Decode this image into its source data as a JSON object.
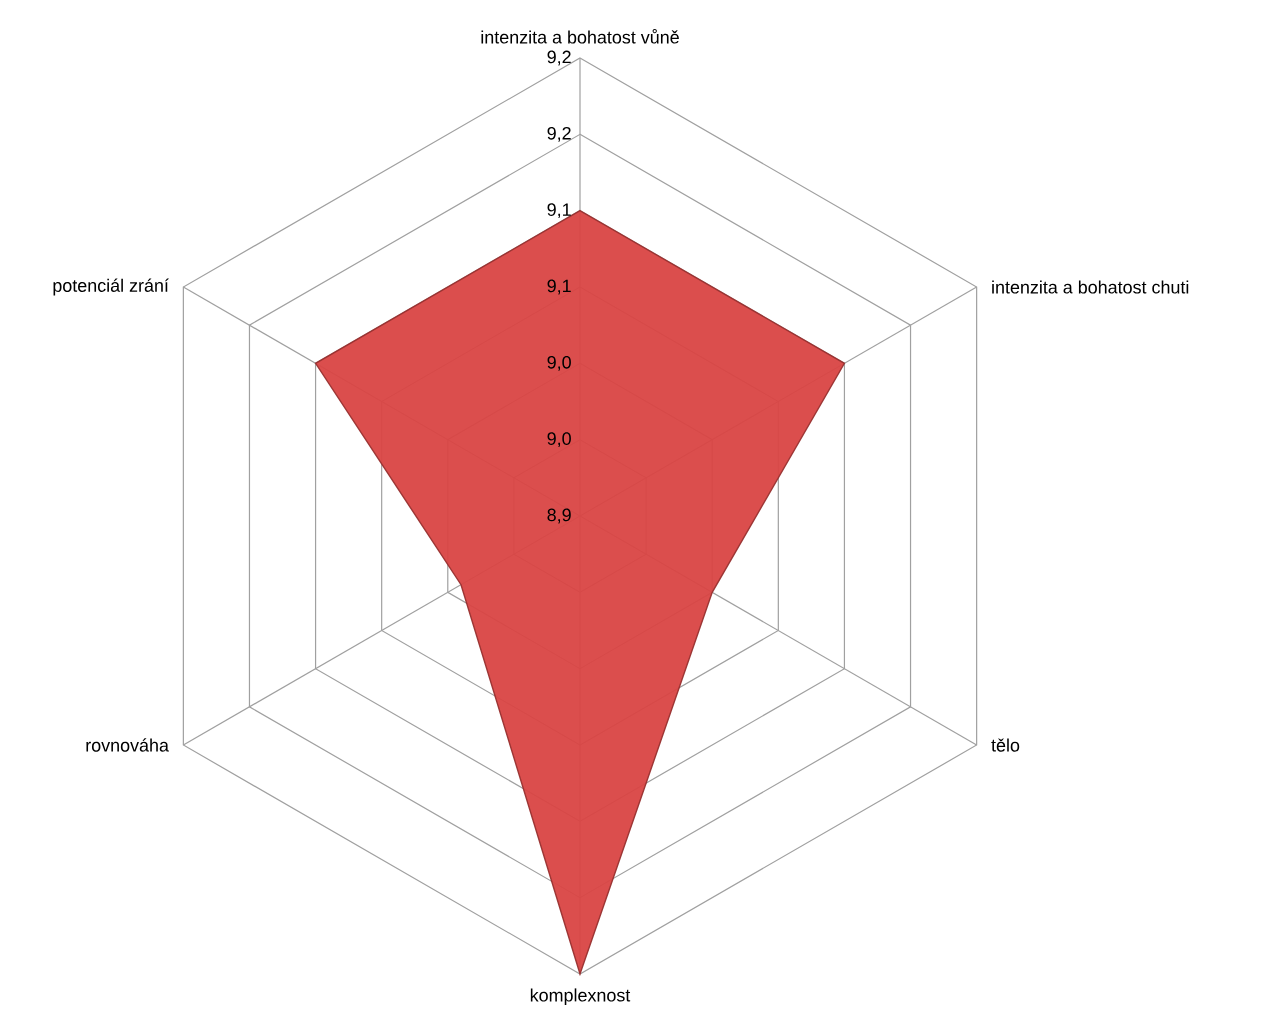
{
  "chart_data": {
    "type": "radar",
    "categories": [
      "intenzita a bohatost  vůně",
      "intenzita a bohatost  chuti",
      "tělo",
      "komplexnost",
      "rovnováha",
      "potenciál zrání"
    ],
    "series": [
      {
        "color": "#d94543",
        "values": [
          9.1,
          9.1,
          9.0,
          9.2,
          8.99,
          9.1
        ]
      }
    ],
    "ylim": [
      8.9,
      9.2
    ],
    "yticks": [
      {
        "value": 8.9,
        "label": "8,9"
      },
      {
        "value": 8.95,
        "label": "9,0"
      },
      {
        "value": 9.0,
        "label": "9,0"
      },
      {
        "value": 9.05,
        "label": "9,1"
      },
      {
        "value": 9.1,
        "label": "9,1"
      },
      {
        "value": 9.15,
        "label": "9,2"
      },
      {
        "value": 9.2,
        "label": "9,2"
      }
    ],
    "grid": true
  }
}
